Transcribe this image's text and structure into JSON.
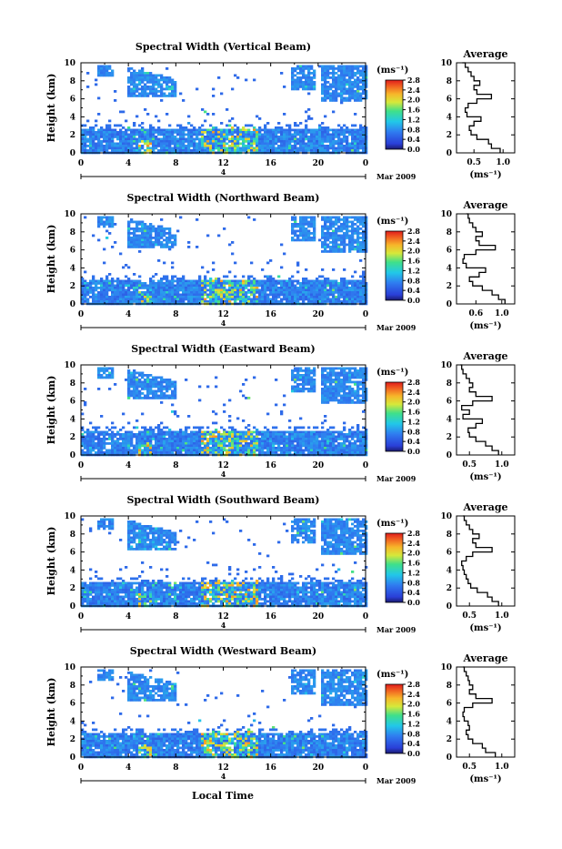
{
  "figure": {
    "x_axis_label": "Local Time",
    "date_label": "Mar 2009",
    "day_label": "4",
    "y_axis_label": "Height (km)",
    "colorbar_unit": "(ms⁻¹)",
    "average_title": "Average",
    "average_xlabel": "(ms⁻¹)"
  },
  "chart_data": [
    {
      "type": "heatmap",
      "title": "Spectral Width (Vertical Beam)",
      "xlabel": "",
      "ylabel": "Height (km)",
      "x_ticks": [
        "0",
        "4",
        "8",
        "12",
        "16",
        "20",
        "0"
      ],
      "y_ticks": [
        "0",
        "2",
        "4",
        "6",
        "8",
        "10"
      ],
      "xlim": [
        0,
        24
      ],
      "ylim": [
        0,
        10
      ],
      "colorbar_ticks": [
        "2.8",
        "2.4",
        "2.0",
        "1.6",
        "1.2",
        "0.8",
        "0.4",
        "0.0"
      ],
      "colorbar_range": [
        0,
        2.8
      ],
      "average_profile": {
        "xlim": [
          0.2,
          1.2
        ],
        "x_ticks": [
          "0.5",
          "1.0"
        ],
        "y_ticks": [
          "0",
          "2",
          "4",
          "6",
          "8",
          "10"
        ],
        "height_km": [
          0,
          0.5,
          1,
          1.5,
          2,
          2.5,
          3,
          3.5,
          4,
          4.5,
          5,
          5.5,
          6,
          6.5,
          7,
          7.5,
          8,
          8.5,
          9,
          9.5,
          10
        ],
        "width": [
          0.95,
          0.8,
          0.75,
          0.55,
          0.45,
          0.42,
          0.5,
          0.62,
          0.38,
          0.35,
          0.4,
          0.55,
          0.8,
          0.55,
          0.5,
          0.6,
          0.5,
          0.45,
          0.4,
          0.35,
          0.3
        ]
      }
    },
    {
      "type": "heatmap",
      "title": "Spectral Width (Northward Beam)",
      "xlabel": "",
      "ylabel": "Height (km)",
      "x_ticks": [
        "0",
        "4",
        "8",
        "12",
        "16",
        "20",
        "0"
      ],
      "y_ticks": [
        "0",
        "2",
        "4",
        "6",
        "8",
        "10"
      ],
      "xlim": [
        0,
        24
      ],
      "ylim": [
        0,
        10
      ],
      "colorbar_ticks": [
        "2.8",
        "2.4",
        "2.0",
        "1.6",
        "1.2",
        "0.8",
        "0.4",
        "0.0"
      ],
      "colorbar_range": [
        0,
        2.8
      ],
      "average_profile": {
        "xlim": [
          0.3,
          1.2
        ],
        "x_ticks": [
          "0.6",
          "1.0"
        ],
        "y_ticks": [
          "0",
          "2",
          "4",
          "6",
          "8",
          "10"
        ],
        "height_km": [
          0,
          0.5,
          1,
          1.5,
          2,
          2.5,
          3,
          3.5,
          4,
          4.5,
          5,
          5.5,
          6,
          6.5,
          7,
          7.5,
          8,
          8.5,
          9,
          9.5,
          10
        ],
        "width": [
          1.05,
          0.95,
          0.85,
          0.7,
          0.55,
          0.5,
          0.65,
          0.75,
          0.45,
          0.4,
          0.42,
          0.6,
          0.9,
          0.65,
          0.6,
          0.7,
          0.6,
          0.55,
          0.5,
          0.48,
          0.45
        ]
      }
    },
    {
      "type": "heatmap",
      "title": "Spectral Width (Eastward Beam)",
      "xlabel": "",
      "ylabel": "Height (km)",
      "x_ticks": [
        "0",
        "4",
        "8",
        "12",
        "16",
        "20",
        "0"
      ],
      "y_ticks": [
        "0",
        "2",
        "4",
        "6",
        "8",
        "10"
      ],
      "xlim": [
        0,
        24
      ],
      "ylim": [
        0,
        10
      ],
      "colorbar_ticks": [
        "2.8",
        "2.4",
        "2.0",
        "1.6",
        "1.2",
        "0.8",
        "0.4",
        "0.0"
      ],
      "colorbar_range": [
        0,
        2.8
      ],
      "average_profile": {
        "xlim": [
          0.3,
          1.2
        ],
        "x_ticks": [
          "0.5",
          "1.0"
        ],
        "y_ticks": [
          "0",
          "2",
          "4",
          "6",
          "8",
          "10"
        ],
        "height_km": [
          0,
          0.5,
          1,
          1.5,
          2,
          2.5,
          3,
          3.5,
          4,
          4.5,
          5,
          5.5,
          6,
          6.5,
          7,
          7.5,
          8,
          8.5,
          9,
          9.5,
          10
        ],
        "width": [
          0.95,
          0.85,
          0.75,
          0.6,
          0.5,
          0.48,
          0.6,
          0.7,
          0.4,
          0.5,
          0.38,
          0.55,
          0.85,
          0.6,
          0.5,
          0.55,
          0.5,
          0.45,
          0.4,
          0.38,
          0.36
        ]
      }
    },
    {
      "type": "heatmap",
      "title": "Spectral Width (Southward Beam)",
      "xlabel": "",
      "ylabel": "Height (km)",
      "x_ticks": [
        "0",
        "4",
        "8",
        "12",
        "16",
        "20",
        "0"
      ],
      "y_ticks": [
        "0",
        "2",
        "4",
        "6",
        "8",
        "10"
      ],
      "xlim": [
        0,
        24
      ],
      "ylim": [
        0,
        10
      ],
      "colorbar_ticks": [
        "2.8",
        "2.4",
        "2.0",
        "1.6",
        "1.2",
        "0.8",
        "0.4",
        "0.0"
      ],
      "colorbar_range": [
        0,
        2.8
      ],
      "average_profile": {
        "xlim": [
          0.3,
          1.2
        ],
        "x_ticks": [
          "0.5",
          "1.0"
        ],
        "y_ticks": [
          "0",
          "2",
          "4",
          "6",
          "8",
          "10"
        ],
        "height_km": [
          0,
          0.5,
          1,
          1.5,
          2,
          2.5,
          3,
          3.5,
          4,
          4.5,
          5,
          5.5,
          6,
          6.5,
          7,
          7.5,
          8,
          8.5,
          9,
          9.5,
          10
        ],
        "width": [
          0.95,
          0.85,
          0.78,
          0.62,
          0.52,
          0.48,
          0.45,
          0.42,
          0.4,
          0.38,
          0.45,
          0.55,
          0.85,
          0.6,
          0.55,
          0.65,
          0.55,
          0.5,
          0.45,
          0.42,
          0.4
        ]
      }
    },
    {
      "type": "heatmap",
      "title": "Spectral Width (Westward Beam)",
      "xlabel": "Local Time",
      "ylabel": "Height (km)",
      "x_ticks": [
        "0",
        "4",
        "8",
        "12",
        "16",
        "20",
        "0"
      ],
      "y_ticks": [
        "0",
        "2",
        "4",
        "6",
        "8",
        "10"
      ],
      "xlim": [
        0,
        24
      ],
      "ylim": [
        0,
        10
      ],
      "colorbar_ticks": [
        "2.8",
        "2.4",
        "2.0",
        "1.6",
        "1.2",
        "0.8",
        "0.4",
        "0.0"
      ],
      "colorbar_range": [
        0,
        2.8
      ],
      "average_profile": {
        "xlim": [
          0.3,
          1.2
        ],
        "x_ticks": [
          "0.5",
          "1.0"
        ],
        "y_ticks": [
          "0",
          "2",
          "4",
          "6",
          "8",
          "10"
        ],
        "height_km": [
          0,
          0.5,
          1,
          1.5,
          2,
          2.5,
          3,
          3.5,
          4,
          4.5,
          5,
          5.5,
          6,
          6.5,
          7,
          7.5,
          8,
          8.5,
          9,
          9.5,
          10
        ],
        "width": [
          0.9,
          0.75,
          0.7,
          0.55,
          0.48,
          0.45,
          0.5,
          0.48,
          0.42,
          0.4,
          0.42,
          0.55,
          0.85,
          0.6,
          0.5,
          0.55,
          0.5,
          0.48,
          0.45,
          0.42,
          0.4
        ]
      }
    }
  ]
}
